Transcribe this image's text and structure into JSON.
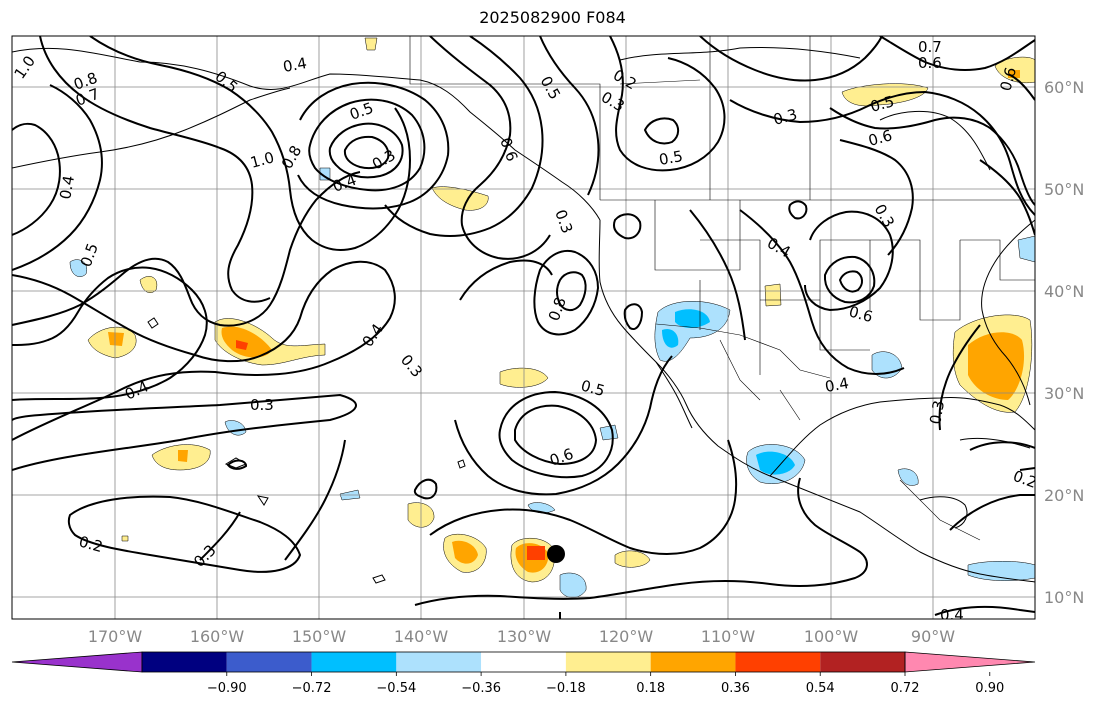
{
  "title": "2025082900 F084",
  "map": {
    "lat_labels": [
      "60°N",
      "50°N",
      "40°N",
      "30°N",
      "20°N",
      "10°N"
    ],
    "lon_labels": [
      "170°W",
      "160°W",
      "150°W",
      "140°W",
      "130°W",
      "120°W",
      "110°W",
      "100°W",
      "90°W"
    ],
    "contour_labels": [
      "1.0",
      "0.8",
      "0.7",
      "0.5",
      "0.4",
      "0.2",
      "0.3",
      "0.7",
      "0.6",
      "0.5",
      "0.3",
      "0.6",
      "0.5",
      "1.0",
      "0.8",
      "0.3",
      "0.4",
      "0.5",
      "0.4",
      "0.5",
      "0.3",
      "0.4",
      "0.4",
      "0.6",
      "0.3",
      "0.8",
      "0.4",
      "0.3",
      "0.5",
      "0.6",
      "0.3",
      "0.2",
      "0.3",
      "0.4",
      "0.2",
      "0.6",
      "0.4",
      "0.3",
      "0.5",
      "0.6"
    ],
    "colors": {
      "land_line": "#000000",
      "grid": "#888888",
      "pos_018": "#ffee90",
      "pos_036": "#ffa500",
      "pos_054": "#ff4000",
      "neg_018": "#ade1fd",
      "neg_036": "#00bfff"
    }
  },
  "colorbar": {
    "ticks": [
      "−0.90",
      "−0.72",
      "−0.54",
      "−0.36",
      "−0.18",
      "0.18",
      "0.36",
      "0.54",
      "0.72",
      "0.90"
    ],
    "colors": [
      "#9932cc",
      "#000080",
      "#3c5ccc",
      "#00bfff",
      "#ade1fd",
      "#ffffff",
      "#ffee90",
      "#ffa500",
      "#ff4000",
      "#b22222",
      "#ff88b0"
    ]
  }
}
